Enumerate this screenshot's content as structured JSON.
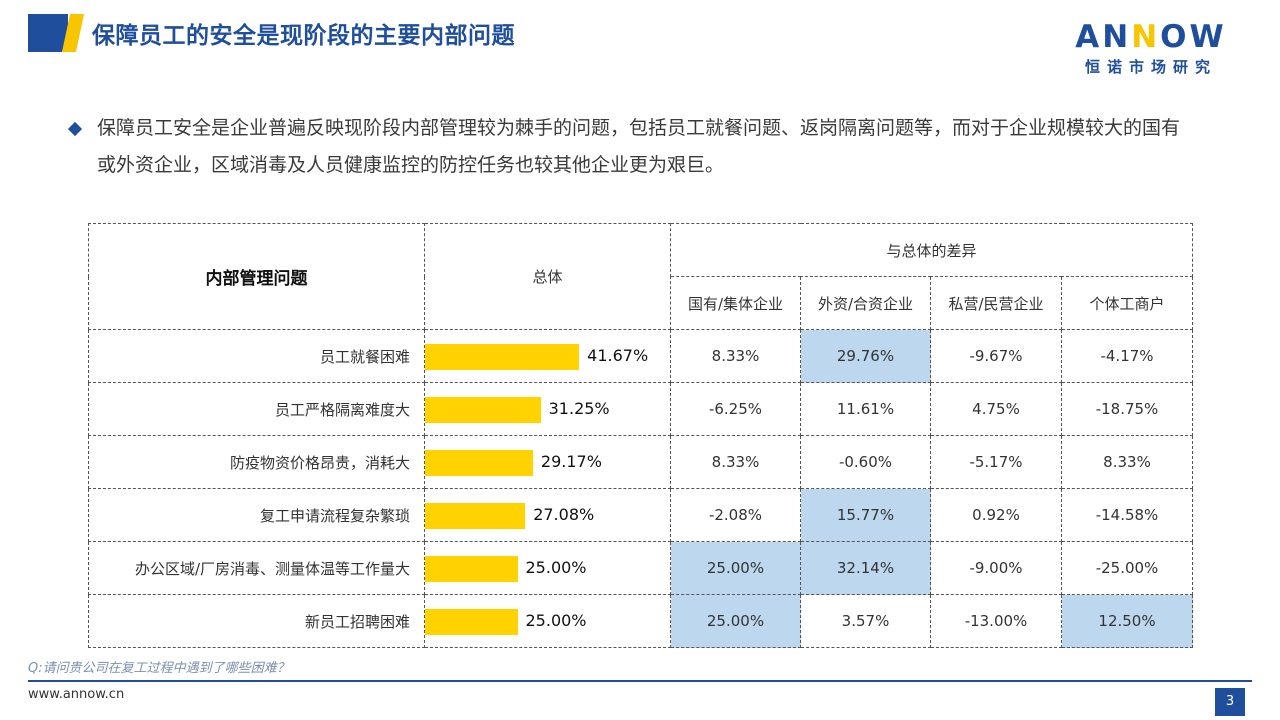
{
  "header": {
    "title": "保障员工的安全是现阶段的主要内部问题",
    "brand_colors": {
      "primary": "#1f4e9c",
      "accent": "#f7c600"
    }
  },
  "logo": {
    "word_prefix": "AN",
    "word_accent": "N",
    "word_suffix": "OW",
    "subtitle": "恒诺市场研究"
  },
  "bullet": {
    "text": "保障员工安全是企业普遍反映现阶段内部管理较为棘手的问题，包括员工就餐问题、返岗隔离问题等，而对于企业规模较大的国有或外资企业，区域消毒及人员健康监控的防控任务也较其他企业更为艰巨。"
  },
  "table": {
    "headers": {
      "issue": "内部管理问题",
      "overall": "总体",
      "diff": "与总体的差异",
      "groups": [
        "国有/集体企业",
        "外资/合资企业",
        "私营/民营企业",
        "个体工商户"
      ]
    },
    "rows": [
      {
        "label": "员工就餐困难",
        "overall": 41.67,
        "overall_text": "41.67%",
        "diffs": [
          "8.33%",
          "29.76%",
          "-9.67%",
          "-4.17%"
        ],
        "highlight": [
          false,
          true,
          false,
          false
        ]
      },
      {
        "label": "员工严格隔离难度大",
        "overall": 31.25,
        "overall_text": "31.25%",
        "diffs": [
          "-6.25%",
          "11.61%",
          "4.75%",
          "-18.75%"
        ],
        "highlight": [
          false,
          false,
          false,
          false
        ]
      },
      {
        "label": "防疫物资价格昂贵，消耗大",
        "overall": 29.17,
        "overall_text": "29.17%",
        "diffs": [
          "8.33%",
          "-0.60%",
          "-5.17%",
          "8.33%"
        ],
        "highlight": [
          false,
          false,
          false,
          false
        ]
      },
      {
        "label": "复工申请流程复杂繁琐",
        "overall": 27.08,
        "overall_text": "27.08%",
        "diffs": [
          "-2.08%",
          "15.77%",
          "0.92%",
          "-14.58%"
        ],
        "highlight": [
          false,
          true,
          false,
          false
        ]
      },
      {
        "label": "办公区域/厂房消毒、测量体温等工作量大",
        "overall": 25.0,
        "overall_text": "25.00%",
        "diffs": [
          "25.00%",
          "32.14%",
          "-9.00%",
          "-25.00%"
        ],
        "highlight": [
          true,
          true,
          false,
          false
        ]
      },
      {
        "label": "新员工招聘困难",
        "overall": 25.0,
        "overall_text": "25.00%",
        "diffs": [
          "25.00%",
          "3.57%",
          "-13.00%",
          "12.50%"
        ],
        "highlight": [
          true,
          false,
          false,
          true
        ]
      }
    ],
    "bar_color": "#ffd200",
    "highlight_color": "#bdd7ee"
  },
  "footer": {
    "question": "Q:请问贵公司在复工过程中遇到了哪些困难？",
    "site": "www.annow.cn",
    "page": "3"
  }
}
